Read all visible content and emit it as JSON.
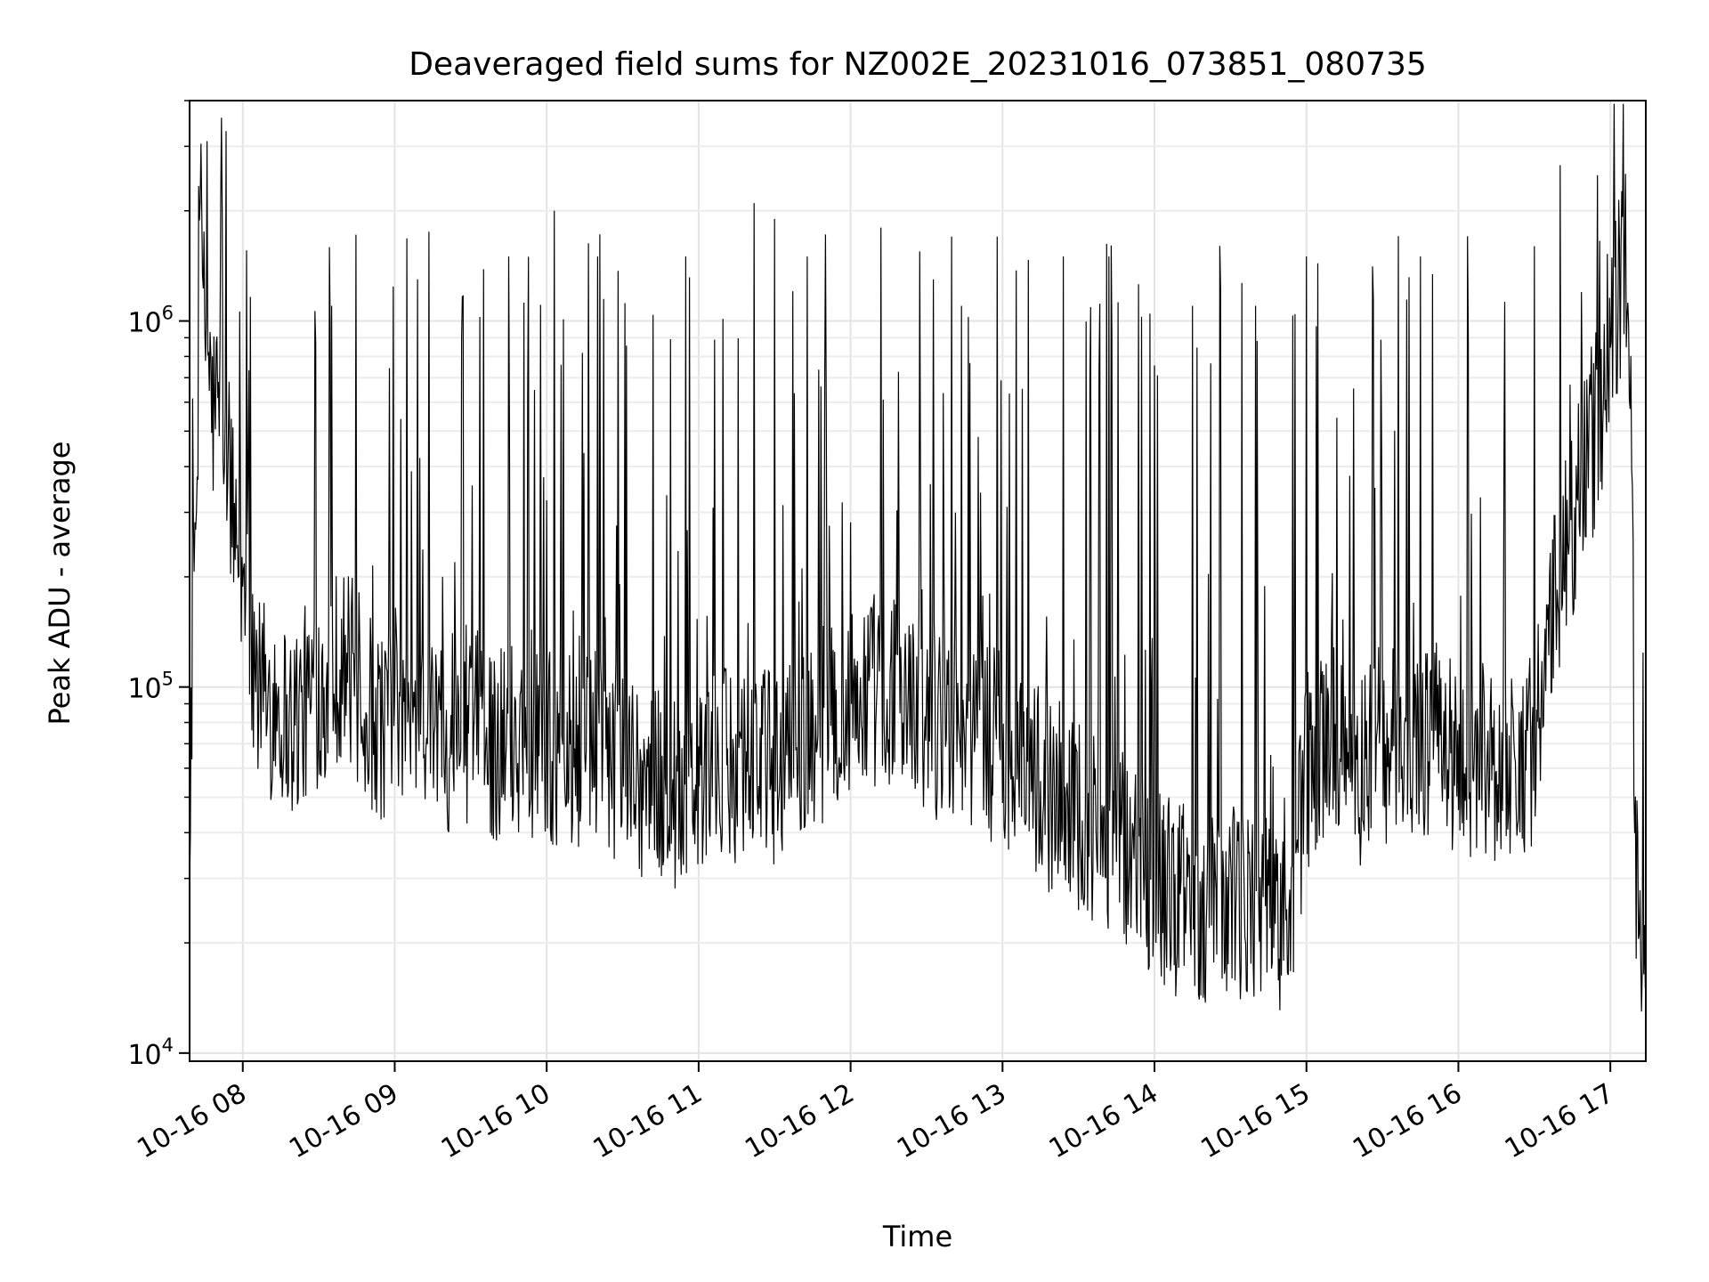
{
  "chart_data": {
    "type": "line",
    "title": "Deaveraged field sums for NZ002E_20231016_073851_080735",
    "xlabel": "Time",
    "ylabel": "Peak ADU - average",
    "x_range": [
      "2023-10-16 07:39",
      "2023-10-16 17:14"
    ],
    "y_scale": "log",
    "ylim": [
      9500,
      4000000
    ],
    "grid": true,
    "line_color": "#000000",
    "x_ticks": [
      {
        "time": "2023-10-16 08:00",
        "label": "10-16 08"
      },
      {
        "time": "2023-10-16 09:00",
        "label": "10-16 09"
      },
      {
        "time": "2023-10-16 10:00",
        "label": "10-16 10"
      },
      {
        "time": "2023-10-16 11:00",
        "label": "10-16 11"
      },
      {
        "time": "2023-10-16 12:00",
        "label": "10-16 12"
      },
      {
        "time": "2023-10-16 13:00",
        "label": "10-16 13"
      },
      {
        "time": "2023-10-16 14:00",
        "label": "10-16 14"
      },
      {
        "time": "2023-10-16 15:00",
        "label": "10-16 15"
      },
      {
        "time": "2023-10-16 16:00",
        "label": "10-16 16"
      },
      {
        "time": "2023-10-16 17:00",
        "label": "10-16 17"
      }
    ],
    "y_ticks": [
      {
        "value": 10000,
        "base": "10",
        "exp": "4"
      },
      {
        "value": 100000,
        "base": "10",
        "exp": "5"
      },
      {
        "value": 1000000,
        "base": "10",
        "exp": "6"
      }
    ],
    "series": [
      {
        "x": [
          "07:39",
          "07:43",
          "07:46",
          "07:48",
          "07:50",
          "07:53",
          "07:56",
          "08:00",
          "08:03",
          "08:06",
          "08:10",
          "08:13",
          "08:16",
          "08:20",
          "08:25",
          "08:30",
          "08:35",
          "08:40",
          "08:45",
          "08:50",
          "08:55",
          "09:00",
          "09:10",
          "09:20",
          "09:30",
          "09:40",
          "09:50",
          "10:00",
          "10:10",
          "10:20",
          "10:30",
          "10:40",
          "10:50",
          "11:00",
          "11:10",
          "11:20",
          "11:30",
          "11:40",
          "11:50",
          "12:00",
          "12:10",
          "12:20",
          "12:30",
          "12:40",
          "12:50",
          "13:00",
          "13:10",
          "13:20",
          "13:30",
          "13:40",
          "13:50",
          "14:00",
          "14:10",
          "14:20",
          "14:30",
          "14:40",
          "14:50",
          "14:55",
          "15:00",
          "15:10",
          "15:20",
          "15:30",
          "15:40",
          "15:50",
          "16:00",
          "16:10",
          "16:20",
          "16:30",
          "16:40",
          "16:45",
          "16:50",
          "16:55",
          "17:00",
          "17:03",
          "17:06",
          "17:08",
          "17:10",
          "17:12",
          "17:14"
        ],
        "values": [
          17000,
          1200000,
          900000,
          550000,
          600000,
          450000,
          300000,
          200000,
          130000,
          100000,
          90000,
          95000,
          85000,
          80000,
          90000,
          100000,
          110000,
          120000,
          100000,
          85000,
          80000,
          80000,
          85000,
          75000,
          80000,
          70000,
          75000,
          70000,
          65000,
          70000,
          60000,
          55000,
          52000,
          55000,
          60000,
          65000,
          60000,
          70000,
          80000,
          90000,
          100000,
          95000,
          85000,
          75000,
          70000,
          70000,
          60000,
          50000,
          45000,
          38000,
          35000,
          30000,
          26000,
          25000,
          27000,
          25000,
          24000,
          30000,
          55000,
          75000,
          60000,
          70000,
          65000,
          75000,
          60000,
          65000,
          60000,
          70000,
          200000,
          280000,
          380000,
          550000,
          800000,
          1200000,
          1400000,
          600000,
          35000,
          22000,
          18000
        ]
      }
    ],
    "spike_tops": [
      {
        "x": "07:46",
        "value": 3100000
      },
      {
        "x": "08:35",
        "value": 1100000
      },
      {
        "x": "09:09",
        "value": 1300000
      },
      {
        "x": "09:45",
        "value": 1500000
      },
      {
        "x": "10:03",
        "value": 2000000
      },
      {
        "x": "10:20",
        "value": 1500000
      },
      {
        "x": "10:55",
        "value": 1500000
      },
      {
        "x": "11:22",
        "value": 2100000
      },
      {
        "x": "11:30",
        "value": 1900000
      },
      {
        "x": "11:43",
        "value": 1500000
      },
      {
        "x": "12:12",
        "value": 1800000
      },
      {
        "x": "12:40",
        "value": 1700000
      },
      {
        "x": "12:58",
        "value": 1700000
      },
      {
        "x": "13:24",
        "value": 1500000
      },
      {
        "x": "13:42",
        "value": 1500000
      },
      {
        "x": "14:15",
        "value": 1100000
      },
      {
        "x": "14:40",
        "value": 1100000
      },
      {
        "x": "15:00",
        "value": 1500000
      },
      {
        "x": "15:45",
        "value": 1500000
      },
      {
        "x": "16:30",
        "value": 1600000
      },
      {
        "x": "16:55",
        "value": 2500000
      }
    ]
  }
}
